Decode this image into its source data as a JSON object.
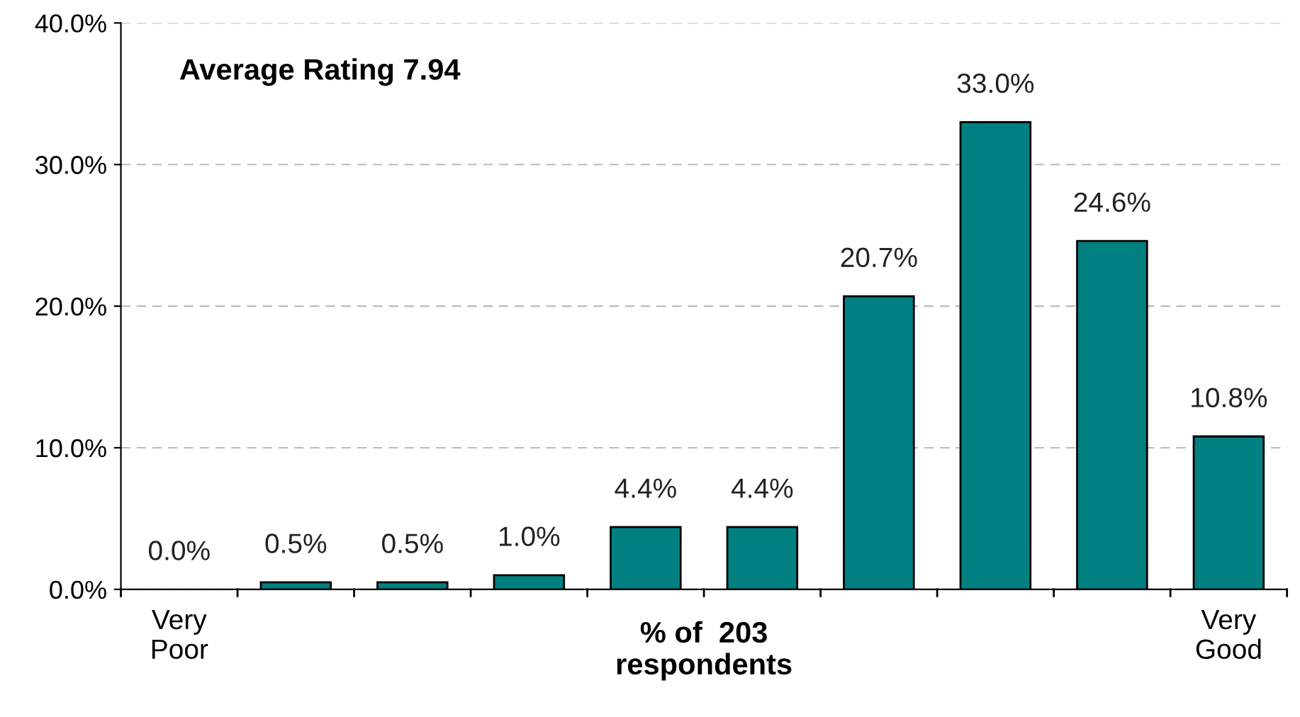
{
  "chart_data": {
    "type": "bar",
    "xlabel": "% of  203\nrespondents",
    "annotations": [
      "Average Rating 7.94"
    ],
    "categories": [
      "Very\nPoor",
      null,
      null,
      null,
      null,
      null,
      null,
      null,
      null,
      "Very\nGood"
    ],
    "values": [
      0.0,
      0.5,
      0.5,
      1.0,
      4.4,
      4.4,
      20.7,
      33.0,
      24.6,
      10.8
    ],
    "value_labels": [
      "0.0%",
      "0.5%",
      "0.5%",
      "1.0%",
      "4.4%",
      "4.4%",
      "20.7%",
      "33.0%",
      "24.6%",
      "10.8%"
    ],
    "color": "#008080",
    "ylim": [
      0,
      40
    ],
    "yticks": [
      {
        "value": 0,
        "label": "0.0%"
      },
      {
        "value": 10,
        "label": "10.0%"
      },
      {
        "value": 20,
        "label": "20.0%"
      },
      {
        "value": 30,
        "label": "30.0%"
      },
      {
        "value": 40,
        "label": "40.0%"
      }
    ],
    "grid": "y",
    "legend": false
  }
}
